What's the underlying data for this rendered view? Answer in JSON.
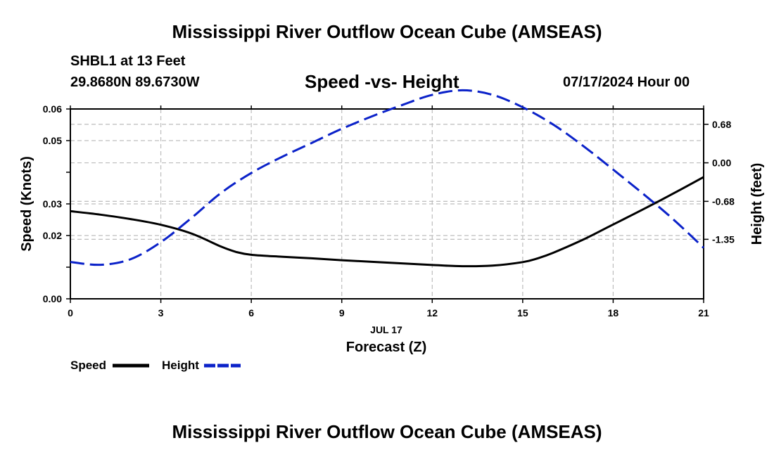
{
  "header": {
    "title": "Mississippi River Outflow Ocean Cube (AMSEAS)",
    "station": "SHBL1 at 13 Feet",
    "latlon": "29.8680N  89.6730W",
    "subtitle": "Speed -vs- Height",
    "datetime": "07/17/2024 Hour 00"
  },
  "footer": {
    "title": "Mississippi River Outflow Ocean Cube (AMSEAS)"
  },
  "chart_data": {
    "type": "line",
    "title": "Speed -vs- Height",
    "xlabel": "Forecast (Z)",
    "xlabel_date": "JUL 17",
    "ylabel_left": "Speed (Knots)",
    "ylabel_right": "Height (feet)",
    "xlim": [
      0,
      21
    ],
    "ylim_left": [
      0,
      0.06
    ],
    "ylim_right": [
      -2.4,
      0.95
    ],
    "x_ticks": [
      0,
      3,
      6,
      9,
      12,
      15,
      18,
      21
    ],
    "x_tick_labels": [
      "0",
      "3",
      "6",
      "9",
      "12",
      "15",
      "18",
      "21"
    ],
    "y_left_ticks": [
      0,
      0.01,
      0.02,
      0.03,
      0.04,
      0.05,
      0.06
    ],
    "y_left_tick_labels": [
      "0.00",
      "",
      "0.02",
      "0.03",
      "",
      "0.05",
      "0.06"
    ],
    "y_right_ticks": [
      0.68,
      0.0,
      -0.68,
      -1.35
    ],
    "y_right_tick_labels": [
      "0.68",
      "0.00",
      "-0.68",
      "-1.35"
    ],
    "grid": true,
    "legend": "bottom-left",
    "series": [
      {
        "name": "Speed",
        "axis": "left",
        "color": "#000000",
        "style": "solid",
        "x": [
          0,
          1,
          2,
          3,
          4,
          5,
          5.5,
          6,
          7,
          8,
          9,
          10,
          11,
          12,
          13,
          14,
          15,
          15.5,
          16,
          17,
          18,
          19,
          20,
          21
        ],
        "values": [
          0.0277,
          0.0266,
          0.0252,
          0.0234,
          0.0207,
          0.0165,
          0.0148,
          0.0139,
          0.0133,
          0.0128,
          0.0122,
          0.0117,
          0.0112,
          0.0107,
          0.0103,
          0.0105,
          0.0116,
          0.0128,
          0.0145,
          0.0187,
          0.0235,
          0.0283,
          0.0333,
          0.0385
        ]
      },
      {
        "name": "Height",
        "axis": "right",
        "color": "#0b22c9",
        "style": "dashed",
        "x": [
          0,
          1,
          2,
          3,
          4,
          5,
          6,
          7,
          8,
          9,
          10,
          11,
          12,
          13,
          14,
          15,
          16,
          17,
          18,
          19,
          20,
          21
        ],
        "values": [
          -1.75,
          -1.8,
          -1.7,
          -1.4,
          -0.98,
          -0.53,
          -0.18,
          0.1,
          0.35,
          0.6,
          0.82,
          1.02,
          1.2,
          1.28,
          1.2,
          0.98,
          0.68,
          0.3,
          -0.12,
          -0.55,
          -1.0,
          -1.5
        ]
      }
    ]
  }
}
